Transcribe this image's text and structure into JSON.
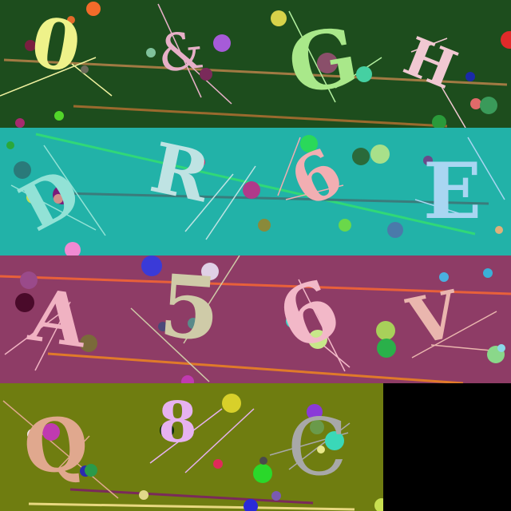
{
  "rows": [
    {
      "background": "#1d4d1d",
      "glyphs": [
        {
          "char": "0",
          "color": "#eef28a"
        },
        {
          "char": "&",
          "color": "#e7b0c8"
        },
        {
          "char": "G",
          "color": "#a9e88a"
        },
        {
          "char": "H",
          "color": "#f1c8d2"
        }
      ]
    },
    {
      "background": "#22b2a8",
      "glyphs": [
        {
          "char": "D",
          "color": "#92e2d6"
        },
        {
          "char": "R",
          "color": "#bfe3e3"
        },
        {
          "char": "6",
          "color": "#f2aeb2"
        },
        {
          "char": "E",
          "color": "#a9d6f2"
        }
      ]
    },
    {
      "background": "#8e3c66",
      "glyphs": [
        {
          "char": "A",
          "color": "#f0b2c2"
        },
        {
          "char": "5",
          "color": "#cfcba8"
        },
        {
          "char": "6",
          "color": "#f2b8c8"
        },
        {
          "char": "V",
          "color": "#eab6ae"
        }
      ]
    },
    {
      "background": "#6f7d10",
      "glyphs": [
        {
          "char": "Q",
          "color": "#e0a88e"
        },
        {
          "char": "8",
          "color": "#e6b2f0"
        },
        {
          "char": "C",
          "color": "#a8a8a8"
        }
      ]
    }
  ],
  "empty_cell_color": "#000000"
}
